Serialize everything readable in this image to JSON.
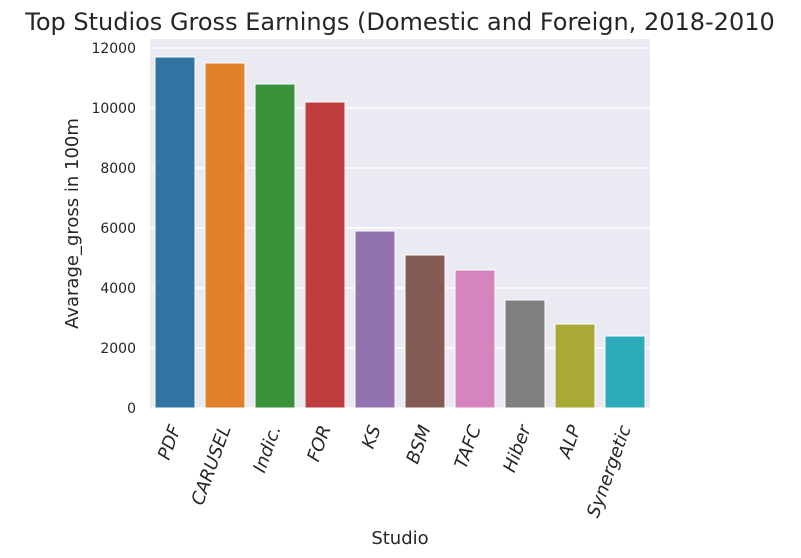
{
  "chart_data": {
    "type": "bar",
    "title": "Top Studios Gross Earnings (Domestic and Foreign, 2018-2010",
    "xlabel": "Studio",
    "ylabel": "Avarage_gross in 100m",
    "categories": [
      "PDF",
      "CARUSEL",
      "Indic.",
      "FOR",
      "KS",
      "BSM",
      "TAFC",
      "Hiber",
      "ALP",
      "Synergetic"
    ],
    "values": [
      11700,
      11500,
      10800,
      10200,
      5900,
      5100,
      4600,
      3600,
      2800,
      2400
    ],
    "colors": [
      "#3274a1",
      "#e1812c",
      "#3a923a",
      "#c03d3e",
      "#9372b2",
      "#845b53",
      "#d684bd",
      "#7f7f7f",
      "#a9aa35",
      "#2eabb8"
    ],
    "yticks": [
      "0",
      "2000",
      "4000",
      "6000",
      "8000",
      "10000",
      "12000"
    ],
    "ylim": [
      0,
      12300
    ],
    "grid": true,
    "background": "#eaeaf2"
  }
}
